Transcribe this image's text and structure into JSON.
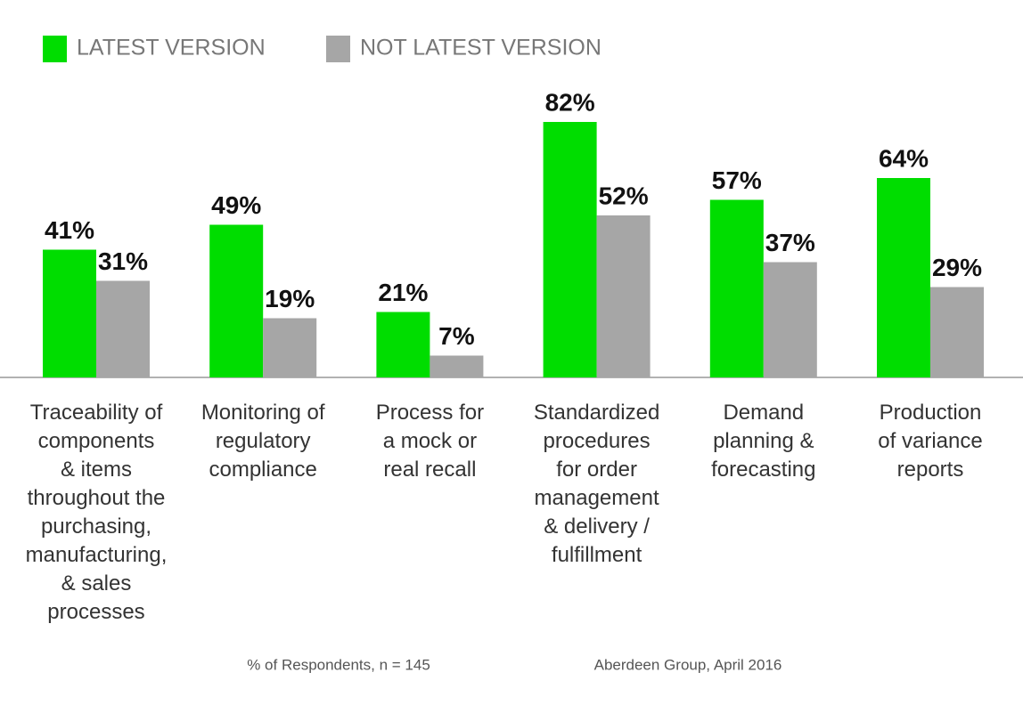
{
  "chart_data": {
    "type": "bar",
    "categories": [
      "Traceability of\ncomponents\n& items\nthroughout the\npurchasing,\nmanufacturing,\n& sales\nprocesses",
      "Monitoring of\nregulatory\ncompliance",
      "Process for\na mock or\nreal recall",
      "Standardized\nprocedures\nfor order\nmanagement\n& delivery /\nfulfillment",
      "Demand\nplanning &\nforecasting",
      "Production\nof variance\nreports"
    ],
    "series": [
      {
        "name": "LATEST VERSION",
        "color": "#00dd00",
        "values": [
          41,
          49,
          21,
          82,
          57,
          64
        ],
        "value_labels": [
          "41%",
          "49%",
          "21%",
          "82%",
          "57%",
          "64%"
        ]
      },
      {
        "name": "NOT LATEST VERSION",
        "color": "#a6a6a6",
        "values": [
          31,
          19,
          7,
          52,
          37,
          29
        ],
        "value_labels": [
          "31%",
          "19%",
          "7%",
          "52%",
          "37%",
          "29%"
        ]
      }
    ],
    "note": "% of Respondents, n = 145",
    "source": "Aberdeen Group, April 2016"
  }
}
